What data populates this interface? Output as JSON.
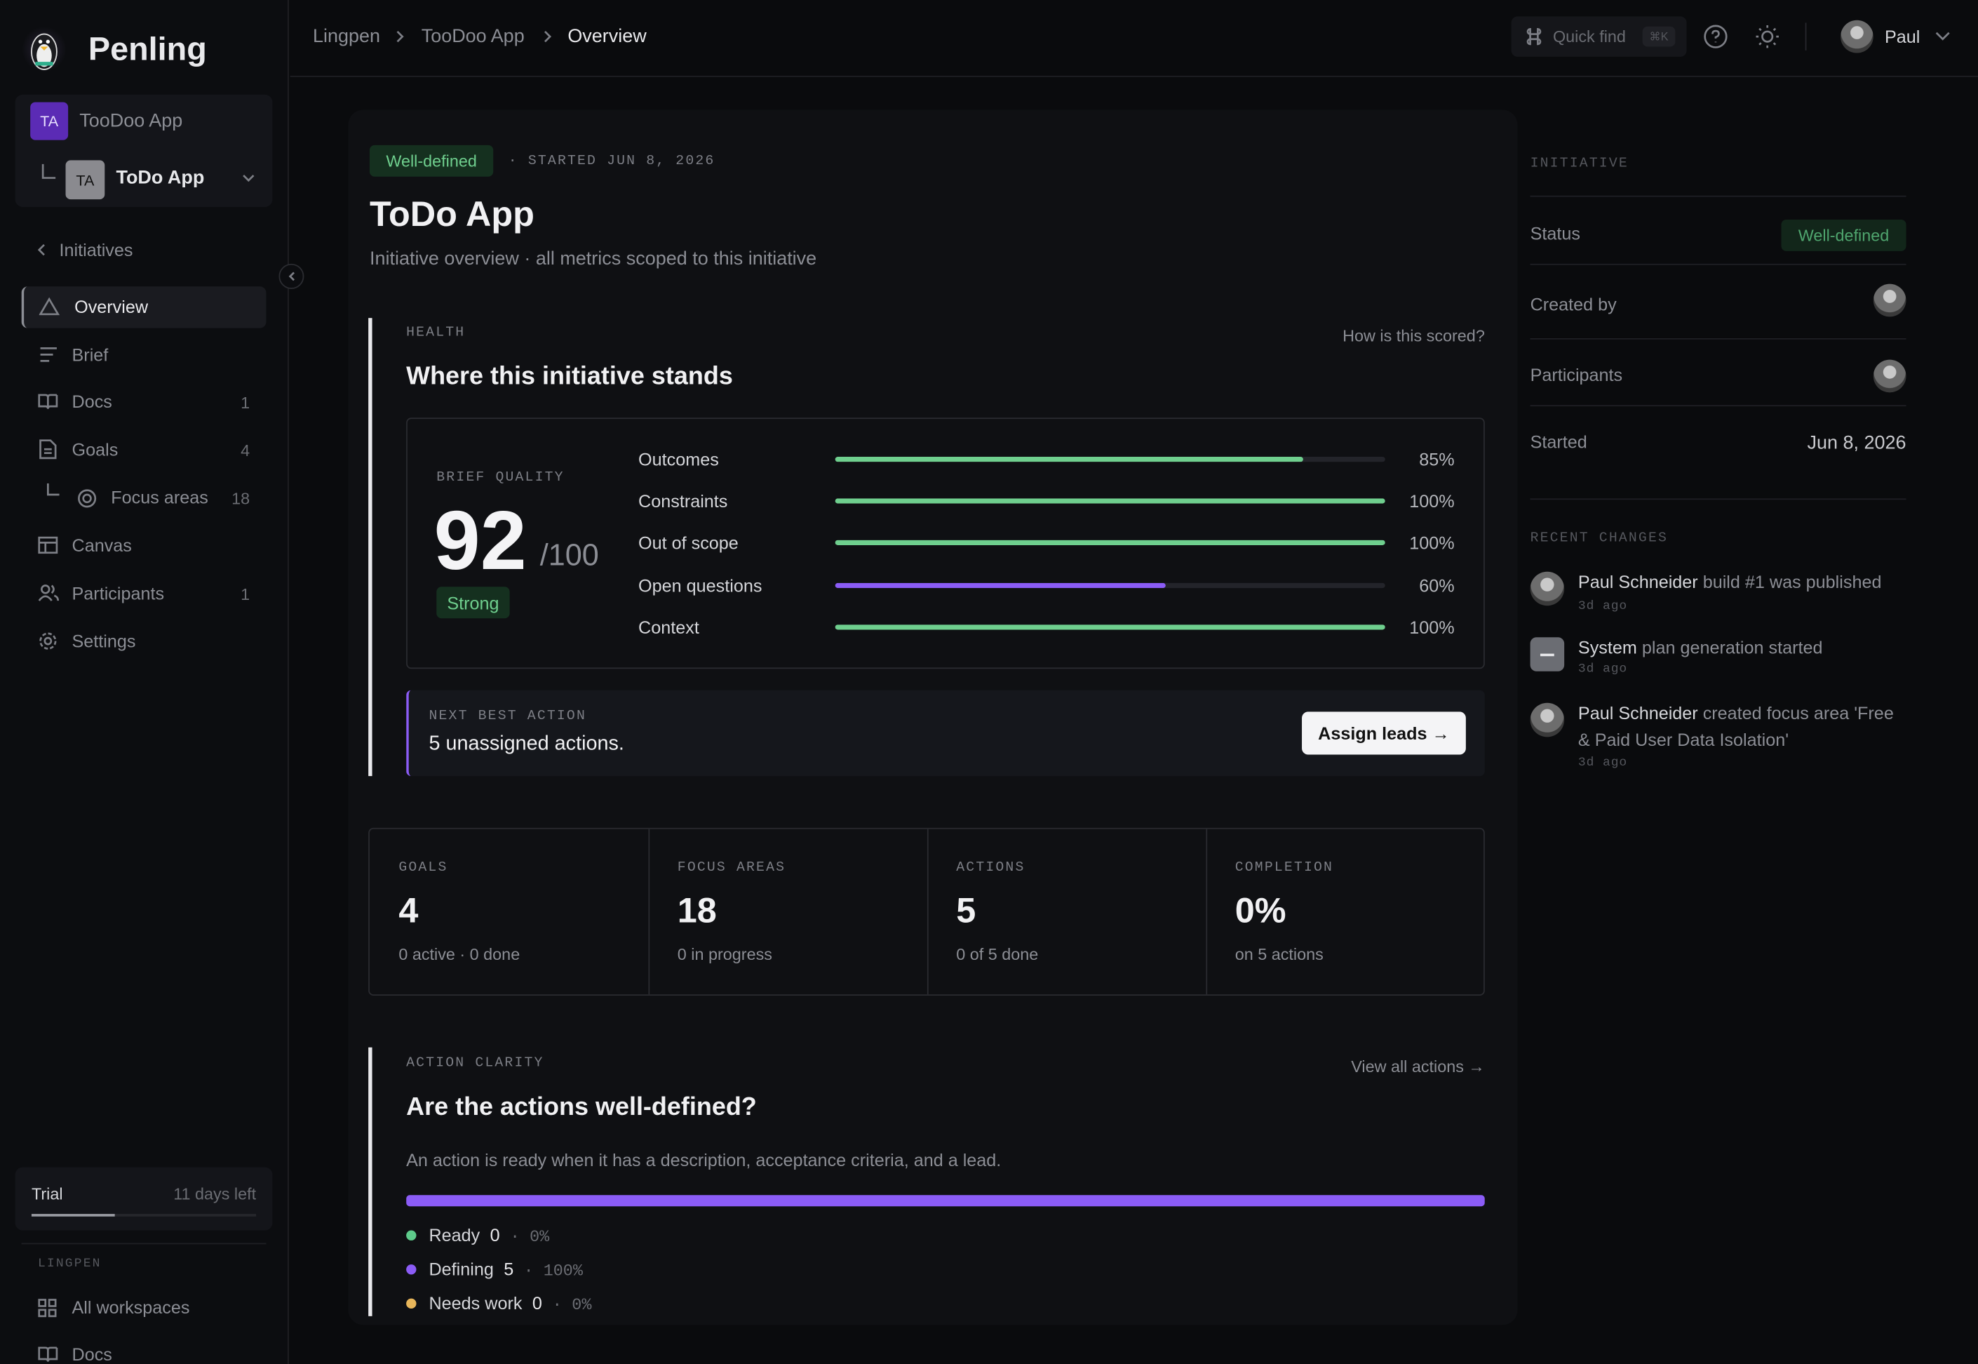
{
  "sidebar": {
    "brand": "Penling",
    "workspace": {
      "badge": "TA",
      "name": "TooDoo App"
    },
    "project": {
      "badge": "TA",
      "name": "ToDo App"
    },
    "back": "Initiatives",
    "nav": [
      {
        "label": "Overview"
      },
      {
        "label": "Brief"
      },
      {
        "label": "Docs",
        "count": 1
      },
      {
        "label": "Goals",
        "count": 4
      },
      {
        "label": "Focus areas",
        "count": 18
      },
      {
        "label": "Canvas"
      },
      {
        "label": "Participants",
        "count": 1
      },
      {
        "label": "Settings"
      }
    ],
    "trial": {
      "label": "Trial",
      "remaining": "11 days left"
    },
    "section": "LINGPEN",
    "links": [
      "All workspaces",
      "Docs"
    ]
  },
  "topbar": {
    "breadcrumbs": [
      "Lingpen",
      "TooDoo App",
      "Overview"
    ],
    "search": "Quick find",
    "shortcut": "⌘K",
    "user": "Paul"
  },
  "header": {
    "status": "Well-defined",
    "started": "· STARTED JUN 8, 2026",
    "title": "ToDo App",
    "subtitle": "Initiative overview · all metrics scoped to this initiative"
  },
  "health": {
    "eyebrow": "HEALTH",
    "title": "Where this initiative stands",
    "link": "How is this scored?",
    "quality_label": "BRIEF QUALITY",
    "score": 92,
    "max": "/100",
    "rating": "Strong",
    "metrics": [
      {
        "name": "Outcomes",
        "value": 85,
        "label": "85%",
        "color": "#6fcf8e"
      },
      {
        "name": "Constraints",
        "value": 100,
        "label": "100%",
        "color": "#6fcf8e"
      },
      {
        "name": "Out of scope",
        "value": 100,
        "label": "100%",
        "color": "#6fcf8e"
      },
      {
        "name": "Open questions",
        "value": 60,
        "label": "60%",
        "color": "#8b5cf6"
      },
      {
        "name": "Context",
        "value": 100,
        "label": "100%",
        "color": "#6fcf8e"
      }
    ],
    "next": {
      "eyebrow": "NEXT BEST ACTION",
      "text": "5 unassigned actions.",
      "button": "Assign leads →"
    }
  },
  "stats": [
    {
      "label": "GOALS",
      "value": "4",
      "note": "0 active · 0 done"
    },
    {
      "label": "FOCUS AREAS",
      "value": "18",
      "note": "0 in progress"
    },
    {
      "label": "ACTIONS",
      "value": "5",
      "note": "0 of 5 done"
    },
    {
      "label": "COMPLETION",
      "value": "0%",
      "note": "on 5 actions"
    }
  ],
  "clarity": {
    "eyebrow": "ACTION CLARITY",
    "title": "Are the actions well-defined?",
    "link": "View all actions →",
    "description": "An action is ready when it has a description, acceptance criteria, and a lead.",
    "legend": [
      {
        "name": "Ready",
        "count": 0,
        "share": 0,
        "share_label": "· 0%",
        "color": "#5ecb8b"
      },
      {
        "name": "Defining",
        "count": 5,
        "share": 100,
        "share_label": "· 100%",
        "color": "#8b5cf6"
      },
      {
        "name": "Needs work",
        "count": 0,
        "share": 0,
        "share_label": "· 0%",
        "color": "#e8b65a"
      }
    ]
  },
  "details": {
    "eyebrow": "INITIATIVE",
    "rows": [
      {
        "label": "Status",
        "value": "Well-defined"
      },
      {
        "label": "Created by"
      },
      {
        "label": "Participants"
      },
      {
        "label": "Started",
        "value": "Jun 8, 2026"
      }
    ]
  },
  "recent": {
    "eyebrow": "RECENT CHANGES",
    "items": [
      {
        "actor": "Paul Schneider",
        "text": "build #1 was published",
        "time": "3d ago"
      },
      {
        "actor": "System",
        "text": "plan generation started",
        "time": "3d ago"
      },
      {
        "actor": "Paul Schneider",
        "text": "created focus area 'Free & Paid User Data Isolation'",
        "time": "3d ago"
      }
    ]
  }
}
